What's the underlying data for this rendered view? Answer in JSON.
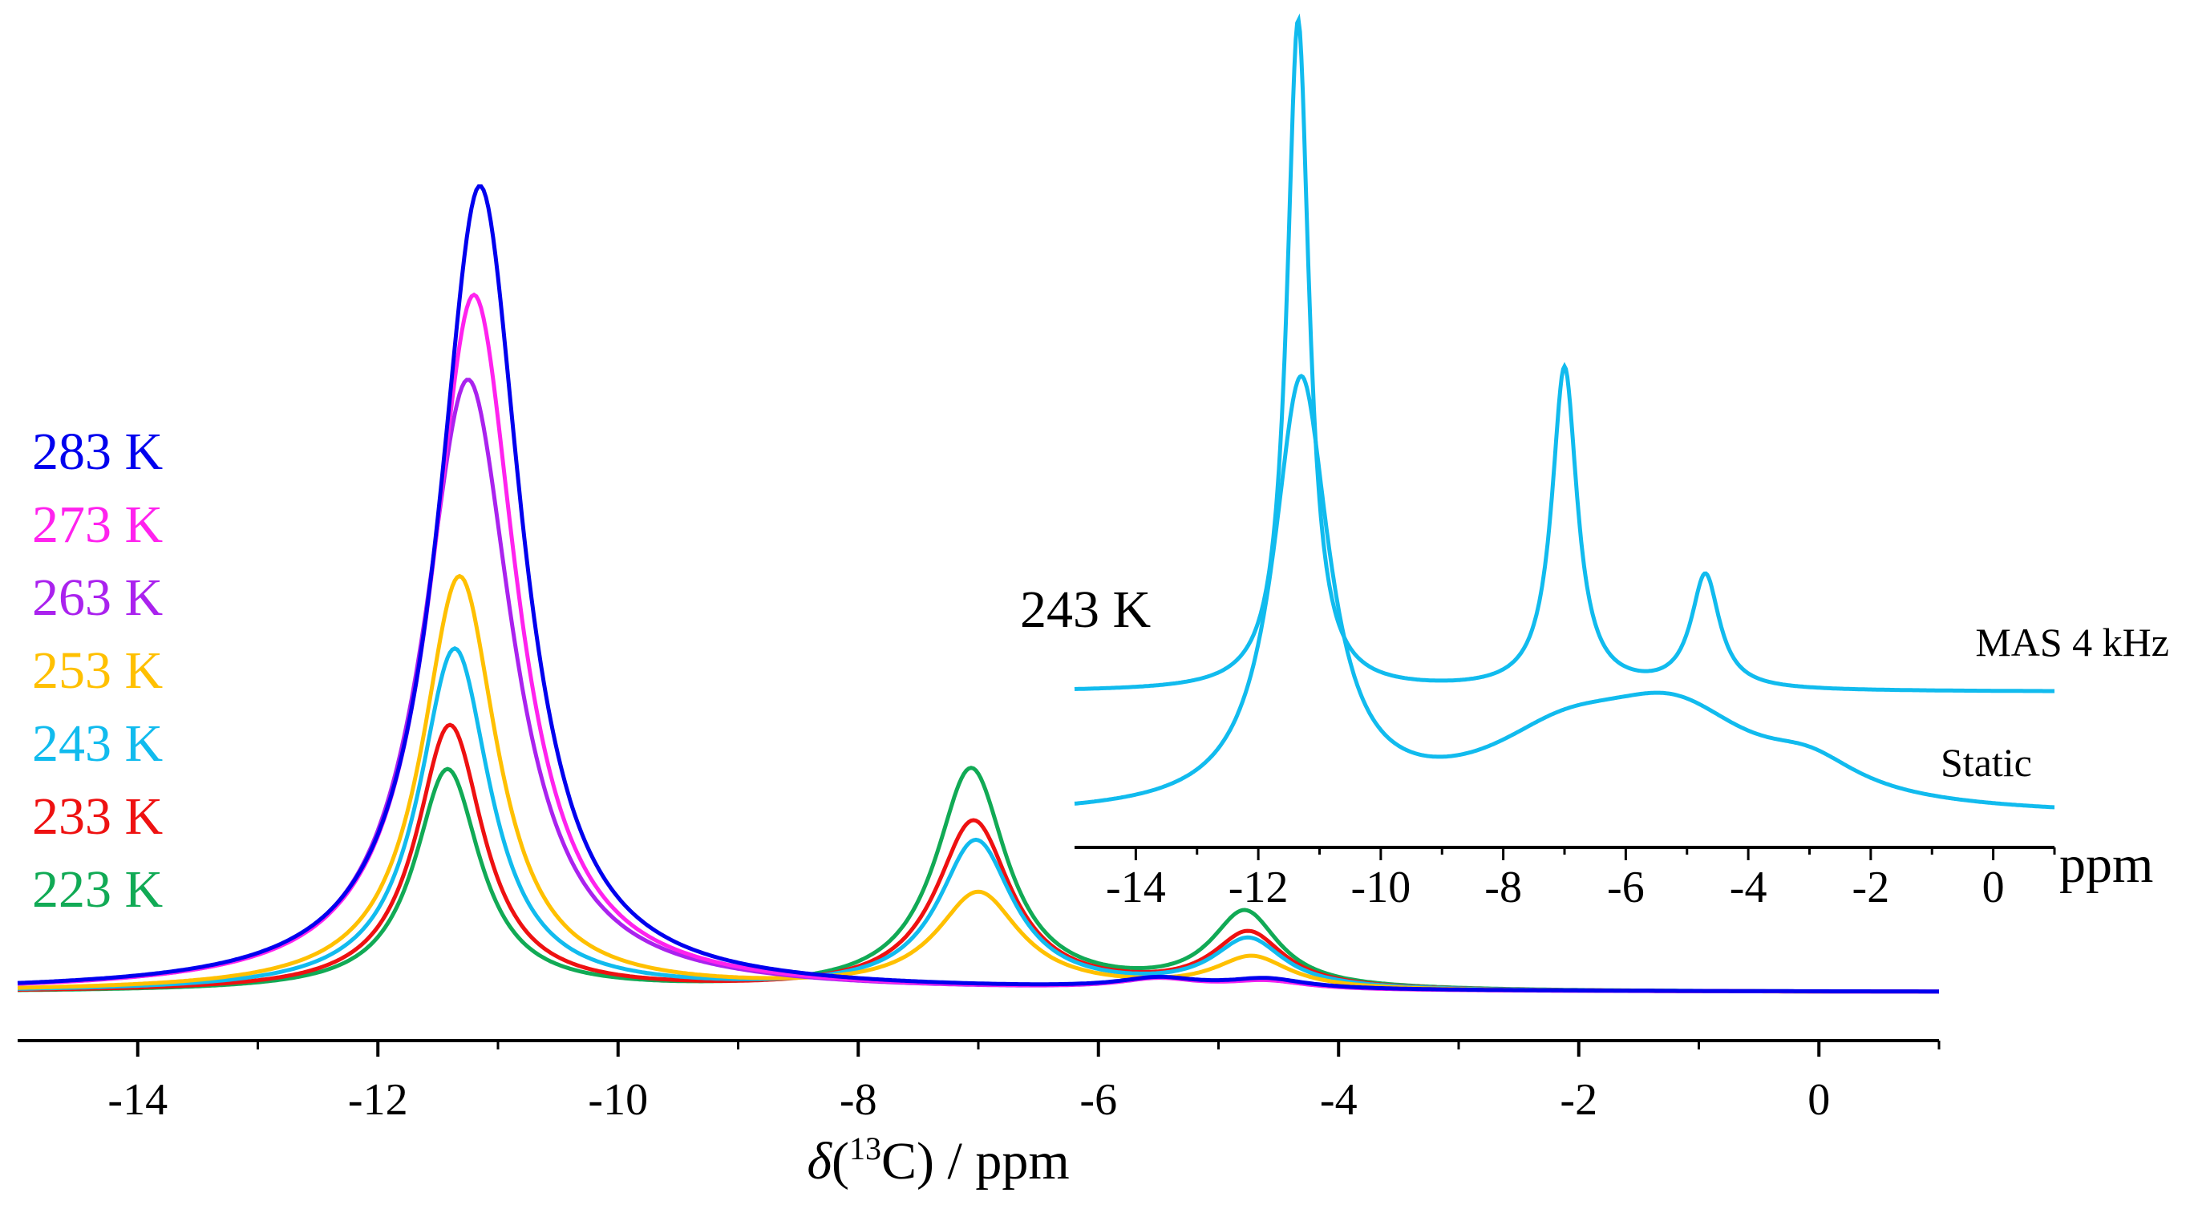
{
  "chart_data": [
    {
      "type": "line",
      "name": "main",
      "xlabel": {
        "italic": "δ",
        "open": "(",
        "sup": "13",
        "rest": "C) / ppm"
      },
      "xlim": [
        -15,
        1
      ],
      "xticks": [
        -14,
        -12,
        -10,
        -8,
        -6,
        -4,
        -2,
        0
      ],
      "xtick_labels": [
        "-14",
        "-12",
        "-10",
        "-8",
        "-6",
        "-4",
        "-2",
        "0"
      ],
      "ylim": [
        0,
        1.0
      ],
      "grid": false,
      "legend_position": "left",
      "series": [
        {
          "name": "283 K",
          "color": "#0000ee",
          "baseline": 0.0,
          "peaks": [
            {
              "center": -11.15,
              "height": 1.0,
              "width": 0.42
            },
            {
              "center": -5.5,
              "height": 0.012,
              "width": 0.4
            },
            {
              "center": -4.6,
              "height": 0.012,
              "width": 0.4
            }
          ]
        },
        {
          "name": "273 K",
          "color": "#ff22ee",
          "baseline": 0.0,
          "peaks": [
            {
              "center": -11.2,
              "height": 0.865,
              "width": 0.43
            },
            {
              "center": -5.5,
              "height": 0.012,
              "width": 0.4
            },
            {
              "center": -4.6,
              "height": 0.01,
              "width": 0.4
            }
          ]
        },
        {
          "name": "263 K",
          "color": "#aa22ee",
          "baseline": 0.0,
          "peaks": [
            {
              "center": -11.25,
              "height": 0.76,
              "width": 0.45
            },
            {
              "center": -5.5,
              "height": 0.012,
              "width": 0.4
            },
            {
              "center": -4.6,
              "height": 0.01,
              "width": 0.4
            }
          ]
        },
        {
          "name": "253 K",
          "color": "#ffc000",
          "baseline": 0.0,
          "peaks": [
            {
              "center": -11.32,
              "height": 0.515,
              "width": 0.38
            },
            {
              "center": -7.0,
              "height": 0.12,
              "width": 0.42
            },
            {
              "center": -4.72,
              "height": 0.04,
              "width": 0.38
            }
          ]
        },
        {
          "name": "243 K",
          "color": "#11bbee",
          "baseline": 0.0,
          "peaks": [
            {
              "center": -11.36,
              "height": 0.425,
              "width": 0.36
            },
            {
              "center": -7.02,
              "height": 0.185,
              "width": 0.38
            },
            {
              "center": -4.75,
              "height": 0.062,
              "width": 0.36
            }
          ]
        },
        {
          "name": "233 K",
          "color": "#ee1111",
          "baseline": 0.0,
          "peaks": [
            {
              "center": -11.4,
              "height": 0.33,
              "width": 0.34
            },
            {
              "center": -7.04,
              "height": 0.21,
              "width": 0.38
            },
            {
              "center": -4.75,
              "height": 0.07,
              "width": 0.36
            }
          ]
        },
        {
          "name": "223 K",
          "color": "#11aa55",
          "baseline": 0.0,
          "peaks": [
            {
              "center": -11.42,
              "height": 0.275,
              "width": 0.33
            },
            {
              "center": -7.06,
              "height": 0.275,
              "width": 0.36
            },
            {
              "center": -4.78,
              "height": 0.095,
              "width": 0.34
            }
          ]
        }
      ]
    },
    {
      "type": "line",
      "name": "inset",
      "label": "243 K",
      "color": "#11bbee",
      "xlabel": "ppm",
      "xlim": [
        -15,
        1
      ],
      "xticks": [
        -14,
        -12,
        -10,
        -8,
        -6,
        -4,
        -2,
        0
      ],
      "xtick_labels": [
        "-14",
        "-12",
        "-10",
        "-8",
        "-6",
        "-4",
        "-2",
        "0"
      ],
      "grid": false,
      "series": [
        {
          "name": "MAS 4 kHz",
          "offset": 1.0,
          "peaks": [
            {
              "center": -11.35,
              "height": 1.0,
              "width": 0.22
            },
            {
              "center": -7.0,
              "height": 0.48,
              "width": 0.25
            },
            {
              "center": -4.7,
              "height": 0.17,
              "width": 0.28
            }
          ]
        },
        {
          "name": "Static",
          "offset": 0.0,
          "peaks": [
            {
              "center": -11.3,
              "height": 0.98,
              "width": 0.55
            },
            {
              "center": -7.0,
              "height": 0.14,
              "width": 1.6
            },
            {
              "center": -5.2,
              "height": 0.2,
              "width": 1.6
            },
            {
              "center": -3.0,
              "height": 0.07,
              "width": 1.0
            }
          ]
        }
      ]
    }
  ]
}
